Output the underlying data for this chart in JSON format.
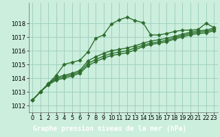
{
  "title": "Graphe pression niveau de la mer (hPa)",
  "background_color": "#cceedd",
  "plot_bg_color": "#cceedd",
  "grid_color": "#99ccbb",
  "line_color": "#2d6e2d",
  "title_bg_color": "#2d6e2d",
  "title_text_color": "#ffffff",
  "xlim": [
    -0.5,
    23.5
  ],
  "ylim": [
    1011.5,
    1019.5
  ],
  "yticks": [
    1012,
    1013,
    1014,
    1015,
    1016,
    1017,
    1018
  ],
  "xticks": [
    0,
    1,
    2,
    3,
    4,
    5,
    6,
    7,
    8,
    9,
    10,
    11,
    12,
    13,
    14,
    15,
    16,
    17,
    18,
    19,
    20,
    21,
    22,
    23
  ],
  "series": [
    [
      1012.4,
      1013.0,
      1013.6,
      1014.2,
      1015.0,
      1015.15,
      1015.3,
      1015.9,
      1016.9,
      1017.15,
      1017.95,
      1018.25,
      1018.45,
      1018.2,
      1018.05,
      1017.15,
      1017.15,
      1017.25,
      1017.4,
      1017.5,
      1017.5,
      1017.55,
      1018.0,
      1017.7
    ],
    [
      1012.4,
      1013.0,
      1013.6,
      1014.05,
      1014.2,
      1014.35,
      1014.55,
      1015.25,
      1015.55,
      1015.8,
      1016.0,
      1016.1,
      1016.2,
      1016.35,
      1016.55,
      1016.7,
      1016.8,
      1016.9,
      1017.05,
      1017.2,
      1017.35,
      1017.45,
      1017.5,
      1017.65
    ],
    [
      1012.4,
      1013.0,
      1013.55,
      1013.95,
      1014.1,
      1014.25,
      1014.45,
      1015.05,
      1015.35,
      1015.6,
      1015.8,
      1015.9,
      1016.0,
      1016.2,
      1016.4,
      1016.55,
      1016.65,
      1016.75,
      1016.95,
      1017.1,
      1017.25,
      1017.35,
      1017.4,
      1017.55
    ],
    [
      1012.4,
      1013.0,
      1013.5,
      1013.85,
      1014.0,
      1014.15,
      1014.35,
      1014.9,
      1015.2,
      1015.45,
      1015.65,
      1015.75,
      1015.85,
      1016.05,
      1016.3,
      1016.45,
      1016.55,
      1016.65,
      1016.85,
      1017.0,
      1017.15,
      1017.25,
      1017.3,
      1017.45
    ]
  ],
  "markersize": 2.8,
  "linewidth": 1.0,
  "tick_fontsize": 6.0,
  "title_fontsize": 7.0
}
